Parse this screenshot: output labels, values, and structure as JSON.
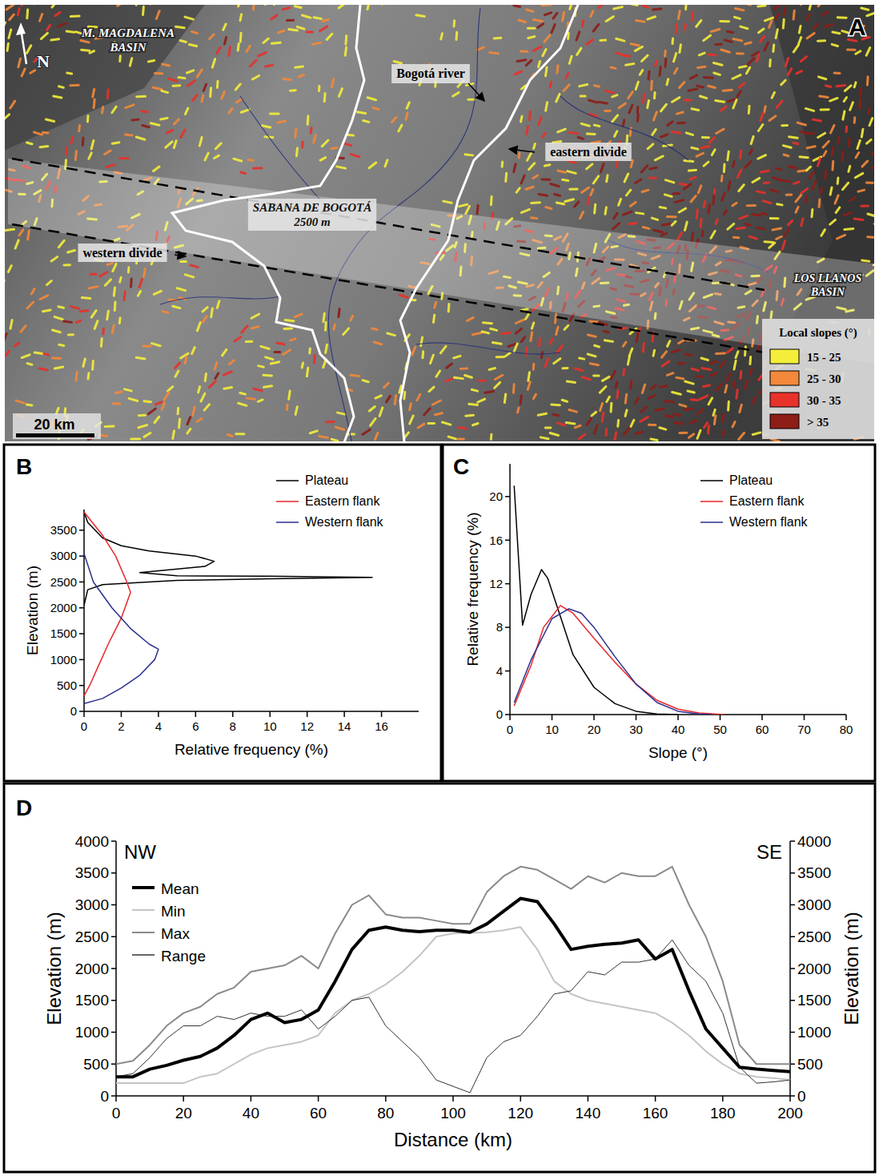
{
  "map": {
    "panel": "A",
    "north": "N",
    "scale_bar": "20 km",
    "labels": [
      {
        "lines": [
          "M. MAGDALENA",
          "BASIN"
        ]
      },
      {
        "lines": [
          "Bogotá river"
        ]
      },
      {
        "lines": [
          "eastern divide"
        ]
      },
      {
        "lines": [
          "SABANA DE BOGOTÁ",
          "2500 m"
        ]
      },
      {
        "lines": [
          "western divide"
        ]
      },
      {
        "lines": [
          "LOS LLANOS",
          "BASIN"
        ]
      }
    ],
    "legend": {
      "title": "Local slopes (°)",
      "items": [
        {
          "label": "15 - 25",
          "color": "#f4ee3a"
        },
        {
          "label": "25 - 30",
          "color": "#f3893a"
        },
        {
          "label": "30 - 35",
          "color": "#e8312a"
        },
        {
          "label": "> 35",
          "color": "#8e1c17"
        }
      ]
    }
  },
  "chart_data": [
    {
      "panel": "B",
      "type": "line",
      "x_label": "Relative frequency (%)",
      "y_label": "Elevation (m)",
      "xlim": [
        0,
        18
      ],
      "xticks": [
        0,
        2,
        4,
        6,
        8,
        10,
        12,
        14,
        16
      ],
      "ylim": [
        0,
        3900
      ],
      "yticks": [
        0,
        500,
        1000,
        1500,
        2000,
        2500,
        3000,
        3500
      ],
      "legend": "top-right",
      "series": [
        {
          "name": "Plateau",
          "color": "#000000",
          "x": [
            0,
            0.2,
            1,
            5,
            10,
            15.5,
            10,
            5,
            3,
            6.5,
            7,
            6,
            3.5,
            2,
            1,
            0.2,
            0
          ],
          "values": [
            2050,
            2350,
            2450,
            2530,
            2560,
            2590,
            2610,
            2620,
            2680,
            2800,
            2900,
            3000,
            3100,
            3200,
            3350,
            3650,
            3850
          ]
        },
        {
          "name": "Eastern flank",
          "color": "#e8262a",
          "x": [
            0,
            1,
            1.7,
            2.3,
            2.5,
            2,
            1.3,
            0.8,
            0.3,
            0
          ],
          "values": [
            3850,
            3400,
            3000,
            2500,
            2300,
            1800,
            1300,
            900,
            500,
            300
          ]
        },
        {
          "name": "Western flank",
          "color": "#2b2f8f",
          "x": [
            0,
            0.5,
            1.5,
            2.5,
            3.5,
            4,
            3.8,
            3,
            2,
            1,
            0
          ],
          "values": [
            3050,
            2500,
            2000,
            1600,
            1300,
            1200,
            1000,
            700,
            450,
            250,
            150
          ]
        }
      ]
    },
    {
      "panel": "C",
      "type": "line",
      "x_label": "Slope (°)",
      "y_label": "Relative frequency (%)",
      "xlim": [
        0,
        80
      ],
      "xticks": [
        0,
        10,
        20,
        30,
        40,
        50,
        60,
        70,
        80
      ],
      "ylim": [
        0,
        23
      ],
      "yticks": [
        0,
        4,
        8,
        12,
        16,
        20
      ],
      "legend": "top-right",
      "series": [
        {
          "name": "Plateau",
          "color": "#000000",
          "x": [
            1,
            3,
            5,
            7.5,
            9,
            12,
            15,
            20,
            25,
            30,
            35,
            40
          ],
          "values": [
            21,
            8.2,
            11,
            13.3,
            12.5,
            9,
            5.5,
            2.5,
            1,
            0.3,
            0.05,
            0
          ]
        },
        {
          "name": "Eastern flank",
          "color": "#e8262a",
          "x": [
            1,
            5,
            8,
            12,
            15,
            20,
            25,
            30,
            35,
            40,
            45,
            51
          ],
          "values": [
            0.8,
            4.5,
            8,
            10,
            9.3,
            7,
            4.8,
            2.8,
            1.3,
            0.5,
            0.15,
            0
          ]
        },
        {
          "name": "Western flank",
          "color": "#2b2f8f",
          "x": [
            1,
            5,
            10,
            14,
            17,
            20,
            25,
            30,
            35,
            40,
            45,
            48
          ],
          "values": [
            1.1,
            5,
            8.8,
            9.7,
            9.3,
            8,
            5.3,
            2.8,
            1.1,
            0.3,
            0.05,
            0
          ]
        }
      ]
    },
    {
      "panel": "D",
      "type": "line",
      "x_label": "Distance (km)",
      "y_label": "Elevation (m)",
      "y2_label": "Elevation (m)",
      "annotations": [
        "NW",
        "SE"
      ],
      "xlim": [
        0,
        200
      ],
      "xticks": [
        0,
        20,
        40,
        60,
        80,
        100,
        120,
        140,
        160,
        180,
        200
      ],
      "ylim": [
        0,
        4000
      ],
      "yticks": [
        0,
        500,
        1000,
        1500,
        2000,
        2500,
        3000,
        3500,
        4000
      ],
      "y2lim": [
        0,
        4000
      ],
      "y2ticks": [
        0,
        500,
        1000,
        1500,
        2000,
        2500,
        3000,
        3500,
        4000
      ],
      "legend": "top-left",
      "x": [
        0,
        5,
        10,
        15,
        20,
        25,
        30,
        35,
        40,
        45,
        50,
        55,
        60,
        65,
        70,
        75,
        80,
        85,
        90,
        95,
        100,
        105,
        110,
        115,
        120,
        125,
        130,
        135,
        140,
        145,
        150,
        155,
        160,
        165,
        170,
        175,
        180,
        185,
        190,
        195,
        200
      ],
      "series": [
        {
          "name": "Mean",
          "color": "#000000",
          "values": [
            300,
            300,
            420,
            480,
            560,
            620,
            750,
            950,
            1200,
            1300,
            1150,
            1200,
            1350,
            1800,
            2300,
            2600,
            2650,
            2600,
            2580,
            2600,
            2600,
            2570,
            2700,
            2900,
            3100,
            3050,
            2700,
            2300,
            2350,
            2380,
            2400,
            2450,
            2150,
            2300,
            1650,
            1050,
            750,
            450,
            420,
            400,
            380
          ]
        },
        {
          "name": "Min",
          "color": "#c4c4c4",
          "values": [
            200,
            200,
            200,
            200,
            200,
            300,
            350,
            500,
            650,
            750,
            800,
            850,
            950,
            1300,
            1500,
            1600,
            1750,
            1950,
            2200,
            2500,
            2550,
            2560,
            2570,
            2600,
            2650,
            2300,
            1800,
            1600,
            1500,
            1450,
            1400,
            1350,
            1300,
            1150,
            950,
            700,
            500,
            350,
            300,
            280,
            250
          ]
        },
        {
          "name": "Max",
          "color": "#8a8a8a",
          "values": [
            500,
            550,
            800,
            1100,
            1300,
            1400,
            1600,
            1700,
            1950,
            2000,
            2050,
            2200,
            2000,
            2550,
            3000,
            3150,
            2850,
            2800,
            2800,
            2750,
            2700,
            2700,
            3200,
            3450,
            3600,
            3550,
            3400,
            3250,
            3450,
            3350,
            3500,
            3450,
            3450,
            3600,
            3000,
            2500,
            1800,
            800,
            500,
            500,
            500
          ]
        },
        {
          "name": "Range",
          "color": "#333333",
          "values": [
            300,
            350,
            600,
            900,
            1100,
            1100,
            1250,
            1200,
            1300,
            1250,
            1250,
            1350,
            1050,
            1250,
            1500,
            1550,
            1100,
            850,
            600,
            250,
            150,
            50,
            600,
            850,
            950,
            1250,
            1600,
            1650,
            1950,
            1900,
            2100,
            2100,
            2150,
            2450,
            2050,
            1800,
            1300,
            450,
            200,
            220,
            250
          ]
        }
      ]
    }
  ]
}
